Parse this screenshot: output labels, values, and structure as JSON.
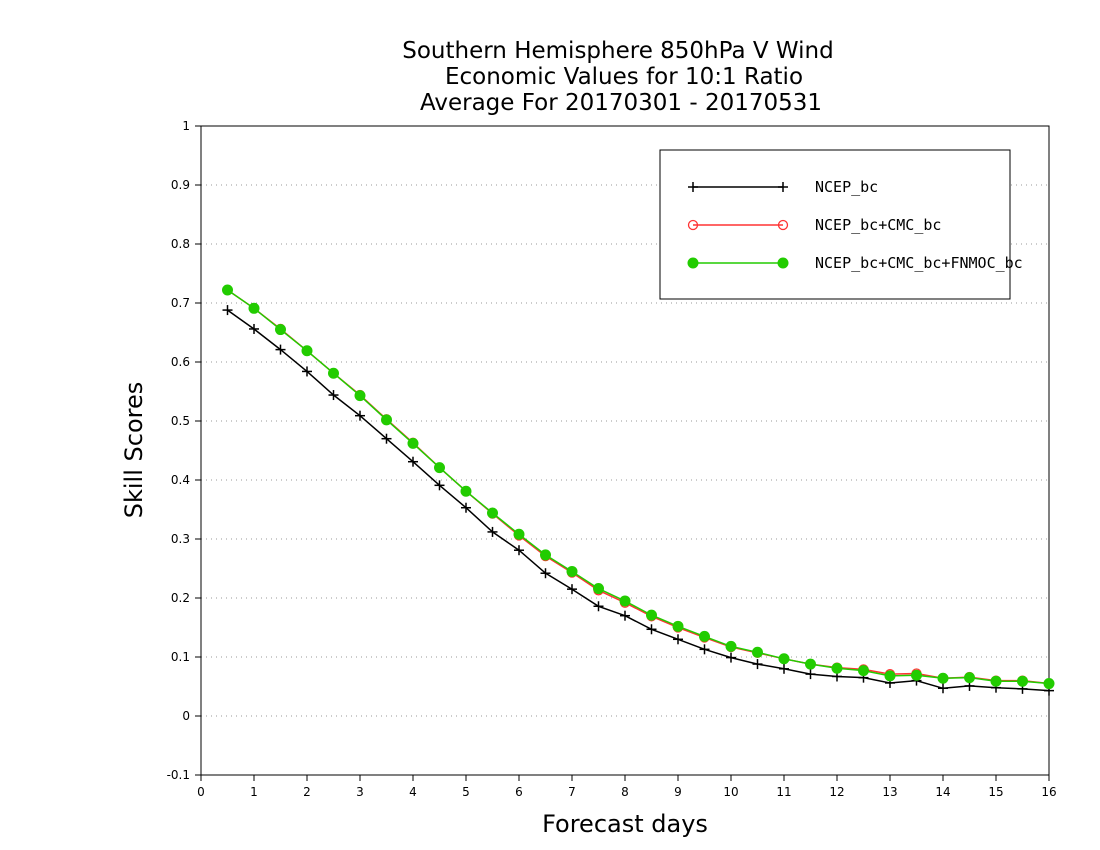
{
  "chart_data": {
    "type": "line",
    "title": [
      "Southern Hemisphere 850hPa V Wind",
      "Economic Values for 10:1 Ratio",
      "Average For 20170301 - 20170531"
    ],
    "xlabel": "Forecast days",
    "ylabel": "Skill Scores",
    "xlim": [
      0,
      16
    ],
    "ylim": [
      -0.1,
      1
    ],
    "xticks": [
      "0",
      "1",
      "2",
      "3",
      "4",
      "5",
      "6",
      "7",
      "8",
      "9",
      "10",
      "11",
      "12",
      "13",
      "14",
      "15",
      "16"
    ],
    "yticks": [
      "-0.1",
      "0",
      "0.1",
      "0.2",
      "0.3",
      "0.4",
      "0.5",
      "0.6",
      "0.7",
      "0.8",
      "0.9",
      "1"
    ],
    "grid": "horizontal dotted",
    "legend_position": "top-right",
    "x": [
      0.5,
      1,
      1.5,
      2,
      2.5,
      3,
      3.5,
      4,
      4.5,
      5,
      5.5,
      6,
      6.5,
      7,
      7.5,
      8,
      8.5,
      9,
      9.5,
      10,
      10.5,
      11,
      11.5,
      12,
      12.5,
      13,
      13.5,
      14,
      14.5,
      15,
      15.5,
      16
    ],
    "series": [
      {
        "name": "NCEP_bc",
        "color": "#000000",
        "marker": "plus",
        "values": [
          0.688,
          0.656,
          0.621,
          0.584,
          0.544,
          0.509,
          0.47,
          0.431,
          0.391,
          0.353,
          0.312,
          0.281,
          0.242,
          0.215,
          0.186,
          0.17,
          0.147,
          0.13,
          0.113,
          0.099,
          0.088,
          0.08,
          0.071,
          0.067,
          0.065,
          0.056,
          0.06,
          0.047,
          0.051,
          0.048,
          0.046,
          0.043
        ]
      },
      {
        "name": "NCEP_bc+CMC_bc",
        "color": "#ff3333",
        "marker": "open-circle",
        "values": [
          0.722,
          0.691,
          0.656,
          0.619,
          0.581,
          0.544,
          0.503,
          0.463,
          0.421,
          0.381,
          0.343,
          0.306,
          0.271,
          0.243,
          0.213,
          0.192,
          0.169,
          0.15,
          0.133,
          0.117,
          0.107,
          0.097,
          0.088,
          0.082,
          0.079,
          0.071,
          0.072,
          0.064,
          0.066,
          0.06,
          0.06,
          0.055
        ]
      },
      {
        "name": "NCEP_bc+CMC_bc+FNMOC_bc",
        "color": "#22cc00",
        "marker": "filled-circle",
        "values": [
          0.722,
          0.691,
          0.655,
          0.619,
          0.581,
          0.543,
          0.502,
          0.462,
          0.421,
          0.381,
          0.344,
          0.308,
          0.273,
          0.245,
          0.216,
          0.195,
          0.171,
          0.152,
          0.135,
          0.118,
          0.108,
          0.097,
          0.088,
          0.081,
          0.077,
          0.068,
          0.069,
          0.064,
          0.065,
          0.059,
          0.059,
          0.055
        ]
      }
    ]
  }
}
